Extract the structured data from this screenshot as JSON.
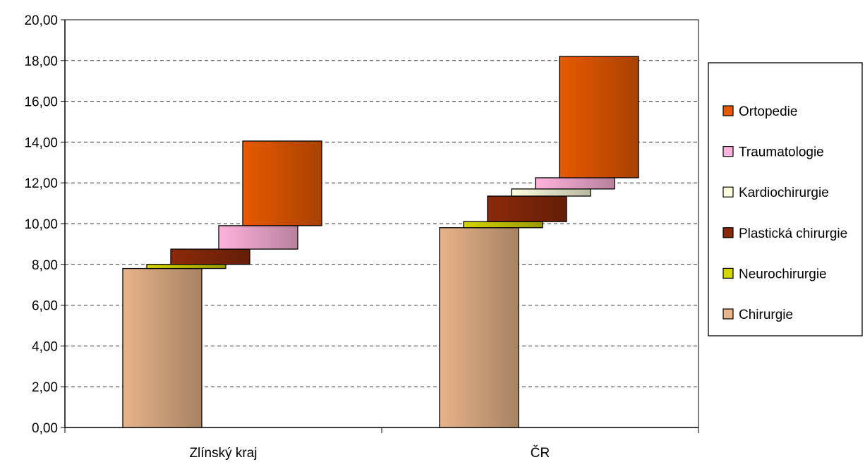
{
  "chart_data": {
    "type": "bar",
    "subtype": "stacked-waterfall",
    "categories": [
      "Zlínský kraj",
      "ČR"
    ],
    "series": [
      {
        "name": "Chirurgie",
        "values": [
          7.8,
          9.8
        ],
        "color": "#e8b48a"
      },
      {
        "name": "Neurochirurgie",
        "values": [
          0.2,
          0.3
        ],
        "color": "#d4d400"
      },
      {
        "name": "Plastická chirurgie",
        "values": [
          0.75,
          1.25
        ],
        "color": "#8b2a0a"
      },
      {
        "name": "Kardiochirurgie",
        "values": [
          0.0,
          0.35
        ],
        "color": "#ffffe0"
      },
      {
        "name": "Traumatologie",
        "values": [
          1.15,
          0.55
        ],
        "color": "#ffb3dc"
      },
      {
        "name": "Ortopedie",
        "values": [
          4.15,
          5.95
        ],
        "color": "#e85a00"
      }
    ],
    "y_tick_labels": [
      "0,00",
      "2,00",
      "4,00",
      "6,00",
      "8,00",
      "10,00",
      "12,00",
      "14,00",
      "16,00",
      "18,00",
      "20,00"
    ],
    "ylim": [
      0,
      20
    ],
    "grid": true,
    "legend_position": "right",
    "title": "",
    "xlabel": "",
    "ylabel": ""
  }
}
